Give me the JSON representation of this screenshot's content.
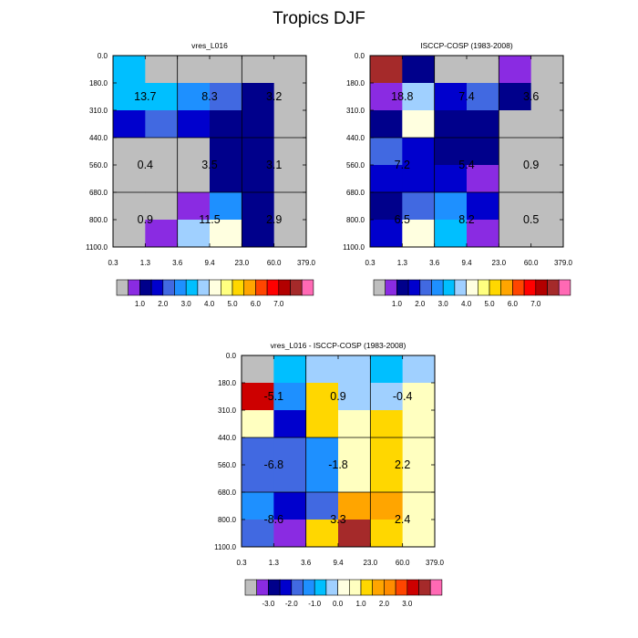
{
  "page": {
    "title": "Tropics DJF"
  },
  "colors": {
    "gray": "#bebebe",
    "abs_palette": [
      "#bebebe",
      "#8a2be2",
      "#00008b",
      "#0000cd",
      "#4169e1",
      "#1e90ff",
      "#00bfff",
      "#a0d0ff",
      "#ffffe0",
      "#ffff80",
      "#ffd700",
      "#ffa500",
      "#ff4500",
      "#ff0000",
      "#b20000",
      "#a52a2a",
      "#ff69b4"
    ],
    "diff_palette": [
      "#bebebe",
      "#8a2be2",
      "#00008b",
      "#0000cd",
      "#4169e1",
      "#1e90ff",
      "#00bfff",
      "#a0d0ff",
      "#ffffe0",
      "#ffffc0",
      "#ffd700",
      "#ffa500",
      "#ff8c00",
      "#ff4500",
      "#cd0000",
      "#a52a2a",
      "#ff69b4"
    ]
  },
  "chart_data": [
    {
      "type": "heatmap",
      "title": "vres_L016",
      "x_ticks": [
        "0.3",
        "1.3",
        "3.6",
        "9.4",
        "23.0",
        "60.0",
        "379.0"
      ],
      "y_ticks": [
        "0.0",
        "180.0",
        "310.0",
        "440.0",
        "560.0",
        "680.0",
        "800.0",
        "1100.0"
      ],
      "cells": [
        [
          "#00bfff",
          "#bebebe",
          "#bebebe",
          "#bebebe",
          "#bebebe",
          "#bebebe"
        ],
        [
          "#00bfff",
          "#00bfff",
          "#1e90ff",
          "#4169e1",
          "#00008b",
          "#bebebe"
        ],
        [
          "#0000cd",
          "#4169e1",
          "#0000cd",
          "#00008b",
          "#00008b",
          "#bebebe"
        ],
        [
          "#bebebe",
          "#bebebe",
          "#bebebe",
          "#00008b",
          "#00008b",
          "#bebebe"
        ],
        [
          "#bebebe",
          "#bebebe",
          "#bebebe",
          "#00008b",
          "#00008b",
          "#bebebe"
        ],
        [
          "#bebebe",
          "#bebebe",
          "#8a2be2",
          "#1e90ff",
          "#00008b",
          "#bebebe"
        ],
        [
          "#bebebe",
          "#8a2be2",
          "#a0d0ff",
          "#ffffe0",
          "#00008b",
          "#bebebe"
        ]
      ],
      "block_labels": [
        {
          "text": "13.7",
          "col": 0,
          "row": 0
        },
        {
          "text": "8.3",
          "col": 1,
          "row": 0
        },
        {
          "text": "3.2",
          "col": 2,
          "row": 0
        },
        {
          "text": "0.4",
          "col": 0,
          "row": 1
        },
        {
          "text": "3.5",
          "col": 1,
          "row": 1
        },
        {
          "text": "3.1",
          "col": 2,
          "row": 1
        },
        {
          "text": "0.9",
          "col": 0,
          "row": 2
        },
        {
          "text": "11.5",
          "col": 1,
          "row": 2
        },
        {
          "text": "2.9",
          "col": 2,
          "row": 2
        }
      ],
      "colorbar_labels": [
        "1.0",
        "2.0",
        "3.0",
        "4.0",
        "5.0",
        "6.0",
        "7.0"
      ]
    },
    {
      "type": "heatmap",
      "title": "ISCCP-COSP (1983-2008)",
      "x_ticks": [
        "0.3",
        "1.3",
        "3.6",
        "9.4",
        "23.0",
        "60.0",
        "379.0"
      ],
      "y_ticks": [
        "0.0",
        "180.0",
        "310.0",
        "440.0",
        "560.0",
        "680.0",
        "800.0",
        "1100.0"
      ],
      "cells": [
        [
          "#a52a2a",
          "#00008b",
          "#bebebe",
          "#bebebe",
          "#8a2be2",
          "#bebebe"
        ],
        [
          "#8a2be2",
          "#a0d0ff",
          "#0000cd",
          "#4169e1",
          "#00008b",
          "#bebebe"
        ],
        [
          "#00008b",
          "#ffffe0",
          "#00008b",
          "#00008b",
          "#bebebe",
          "#bebebe"
        ],
        [
          "#4169e1",
          "#0000cd",
          "#00008b",
          "#00008b",
          "#bebebe",
          "#bebebe"
        ],
        [
          "#0000cd",
          "#0000cd",
          "#0000cd",
          "#8a2be2",
          "#bebebe",
          "#bebebe"
        ],
        [
          "#00008b",
          "#4169e1",
          "#1e90ff",
          "#0000cd",
          "#bebebe",
          "#bebebe"
        ],
        [
          "#0000cd",
          "#ffffe0",
          "#00bfff",
          "#8a2be2",
          "#bebebe",
          "#bebebe"
        ]
      ],
      "block_labels": [
        {
          "text": "18.8",
          "col": 0,
          "row": 0
        },
        {
          "text": "7.4",
          "col": 1,
          "row": 0
        },
        {
          "text": "3.6",
          "col": 2,
          "row": 0
        },
        {
          "text": "7.2",
          "col": 0,
          "row": 1
        },
        {
          "text": "5.4",
          "col": 1,
          "row": 1
        },
        {
          "text": "0.9",
          "col": 2,
          "row": 1
        },
        {
          "text": "6.5",
          "col": 0,
          "row": 2
        },
        {
          "text": "8.2",
          "col": 1,
          "row": 2
        },
        {
          "text": "0.5",
          "col": 2,
          "row": 2
        }
      ],
      "colorbar_labels": [
        "1.0",
        "2.0",
        "3.0",
        "4.0",
        "5.0",
        "6.0",
        "7.0"
      ]
    },
    {
      "type": "heatmap",
      "title": "vres_L016 - ISCCP-COSP (1983-2008)",
      "x_ticks": [
        "0.3",
        "1.3",
        "3.6",
        "9.4",
        "23.0",
        "60.0",
        "379.0"
      ],
      "y_ticks": [
        "0.0",
        "180.0",
        "310.0",
        "440.0",
        "560.0",
        "680.0",
        "800.0",
        "1100.0"
      ],
      "cells": [
        [
          "#bebebe",
          "#00bfff",
          "#a0d0ff",
          "#a0d0ff",
          "#00bfff",
          "#a0d0ff"
        ],
        [
          "#cd0000",
          "#1e90ff",
          "#ffd700",
          "#a0d0ff",
          "#a0d0ff",
          "#ffffc0"
        ],
        [
          "#ffffc0",
          "#0000cd",
          "#ffd700",
          "#ffffc0",
          "#ffd700",
          "#ffffc0"
        ],
        [
          "#4169e1",
          "#4169e1",
          "#1e90ff",
          "#ffffc0",
          "#ffd700",
          "#ffffc0"
        ],
        [
          "#4169e1",
          "#4169e1",
          "#1e90ff",
          "#ffffc0",
          "#ffd700",
          "#ffffc0"
        ],
        [
          "#1e90ff",
          "#0000cd",
          "#4169e1",
          "#ffa500",
          "#ffa500",
          "#ffffc0"
        ],
        [
          "#4169e1",
          "#8a2be2",
          "#ffd700",
          "#a52a2a",
          "#ffd700",
          "#ffffc0"
        ]
      ],
      "block_labels": [
        {
          "text": "-5.1",
          "col": 0,
          "row": 0
        },
        {
          "text": "0.9",
          "col": 1,
          "row": 0
        },
        {
          "text": "-0.4",
          "col": 2,
          "row": 0
        },
        {
          "text": "-6.8",
          "col": 0,
          "row": 1
        },
        {
          "text": "-1.8",
          "col": 1,
          "row": 1
        },
        {
          "text": "2.2",
          "col": 2,
          "row": 1
        },
        {
          "text": "-8.6",
          "col": 0,
          "row": 2
        },
        {
          "text": "3.3",
          "col": 1,
          "row": 2
        },
        {
          "text": "2.4",
          "col": 2,
          "row": 2
        }
      ],
      "colorbar_labels": [
        "-3.0",
        "-2.0",
        "-1.0",
        "0.0",
        "1.0",
        "2.0",
        "3.0"
      ]
    }
  ]
}
